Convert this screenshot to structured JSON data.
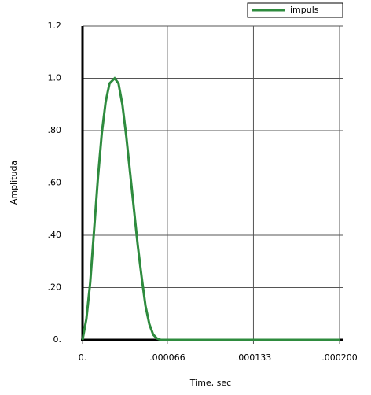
{
  "chart_data": {
    "type": "line",
    "x_label": "Time, sec",
    "y_label": "Amplituda",
    "x": [
      0,
      3e-06,
      6e-06,
      9e-06,
      1.2e-05,
      1.5e-05,
      1.8e-05,
      2.1e-05,
      2.5e-05,
      2.8e-05,
      3.1e-05,
      3.4e-05,
      3.7e-05,
      4e-05,
      4.3e-05,
      4.6e-05,
      4.9e-05,
      5.2e-05,
      5.5e-05,
      5.8e-05,
      6.1e-05,
      0.0002
    ],
    "series": [
      {
        "name": "impuls",
        "color": "#2e8b3e",
        "values": [
          0,
          0.08,
          0.22,
          0.42,
          0.62,
          0.79,
          0.91,
          0.98,
          1.0,
          0.98,
          0.9,
          0.78,
          0.64,
          0.5,
          0.36,
          0.24,
          0.13,
          0.06,
          0.02,
          0.005,
          0,
          0
        ]
      }
    ],
    "xlim": [
      0,
      0.0002
    ],
    "xticks": [
      {
        "value": 0,
        "label": "0."
      },
      {
        "value": 6.6e-05,
        "label": ".000066"
      },
      {
        "value": 0.000133,
        "label": ".000133"
      },
      {
        "value": 0.0002,
        "label": ".000200"
      }
    ],
    "ylim": [
      0,
      1.2
    ],
    "yticks": [
      {
        "value": 0,
        "label": "0."
      },
      {
        "value": 0.2,
        "label": ".20"
      },
      {
        "value": 0.4,
        "label": ".40"
      },
      {
        "value": 0.6,
        "label": ".60"
      },
      {
        "value": 0.8,
        "label": ".80"
      },
      {
        "value": 1.0,
        "label": "1.0"
      },
      1.2
    ],
    "grid": true,
    "legend": "top-right"
  }
}
